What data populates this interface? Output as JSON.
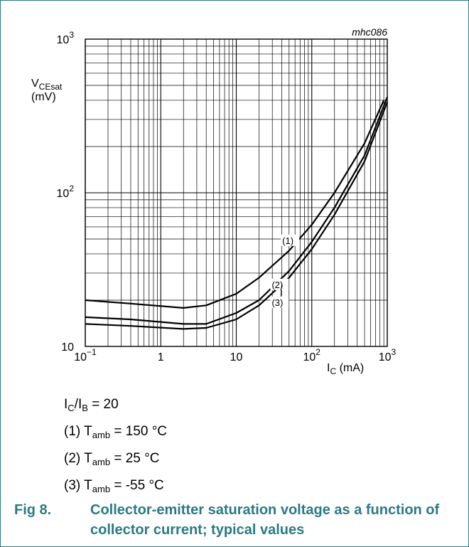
{
  "figure": {
    "id_label": "mhc086",
    "number": "Fig 8.",
    "caption": "Collector-emitter saturation voltage as a function of collector current; typical values"
  },
  "conditions": {
    "ratio_main": "I",
    "ratio_sub1": "C",
    "ratio_slash": "/I",
    "ratio_sub2": "B",
    "ratio_rest": " = 20",
    "lines": [
      {
        "prefix": "(1) T",
        "sub": "amb",
        "rest": " = 150 °C"
      },
      {
        "prefix": "(2) T",
        "sub": "amb",
        "rest": " = 25 °C"
      },
      {
        "prefix": "(3) T",
        "sub": "amb",
        "rest": " = -55 °C"
      }
    ]
  },
  "chart_data": {
    "type": "line",
    "x_scale": "log",
    "y_scale": "log",
    "xlim": [
      0.1,
      1000
    ],
    "ylim": [
      10,
      1000
    ],
    "grid": true,
    "ylabel_main": "V",
    "ylabel_sub": "CEsat",
    "ylabel_unit": "(mV)",
    "xlabel_main": "I",
    "xlabel_sub": "C",
    "xlabel_unit": " (mA)",
    "x_ticks": [
      {
        "base": "10",
        "exp": "−1"
      },
      {
        "base": "1",
        "exp": ""
      },
      {
        "base": "10",
        "exp": ""
      },
      {
        "base": "10",
        "exp": "2"
      },
      {
        "base": "10",
        "exp": "3"
      }
    ],
    "y_ticks": [
      {
        "base": "10",
        "exp": ""
      },
      {
        "base": "10",
        "exp": "2"
      },
      {
        "base": "10",
        "exp": "3"
      }
    ],
    "series": [
      {
        "name": "(1)",
        "x": [
          0.1,
          0.4,
          2,
          4,
          10,
          20,
          50,
          100,
          200,
          500,
          900
        ],
        "y": [
          20,
          19,
          17.8,
          18.5,
          22,
          28,
          42,
          62,
          100,
          210,
          400
        ]
      },
      {
        "name": "(2)",
        "x": [
          0.1,
          0.4,
          2,
          4,
          10,
          20,
          50,
          100,
          200,
          500,
          1000
        ],
        "y": [
          15.5,
          15,
          14,
          14,
          16.5,
          20,
          31,
          48,
          80,
          175,
          420
        ]
      },
      {
        "name": "(3)",
        "x": [
          0.1,
          0.4,
          2,
          4,
          10,
          20,
          50,
          100,
          200,
          500,
          1000
        ],
        "y": [
          14,
          13.6,
          13,
          13.2,
          15,
          18.5,
          28,
          43,
          72,
          160,
          390
        ]
      }
    ]
  }
}
